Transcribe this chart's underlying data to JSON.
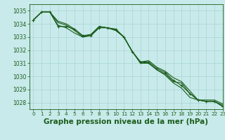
{
  "title": "Graphe pression niveau de la mer (hPa)",
  "bg_color": "#c8eaea",
  "grid_color": "#aad4d4",
  "line_color": "#1a5c1a",
  "xlim": [
    -0.5,
    23
  ],
  "ylim": [
    1027.5,
    1035.5
  ],
  "yticks": [
    1028,
    1029,
    1030,
    1031,
    1032,
    1033,
    1034,
    1035
  ],
  "xticks": [
    0,
    1,
    2,
    3,
    4,
    5,
    6,
    7,
    8,
    9,
    10,
    11,
    12,
    13,
    14,
    15,
    16,
    17,
    18,
    19,
    20,
    21,
    22,
    23
  ],
  "series": [
    [
      1034.3,
      1034.9,
      1034.9,
      1033.8,
      1033.8,
      1033.6,
      1033.1,
      1033.1,
      1033.7,
      1033.7,
      1033.6,
      1033.0,
      1031.9,
      1031.1,
      1031.1,
      1030.6,
      1030.3,
      1029.7,
      1029.3,
      1028.7,
      1028.2,
      1028.1,
      1028.1,
      1027.7
    ],
    [
      1034.3,
      1034.9,
      1034.9,
      1034.1,
      1033.9,
      1033.5,
      1033.0,
      1033.2,
      1033.8,
      1033.7,
      1033.5,
      1033.0,
      1031.9,
      1031.0,
      1031.0,
      1030.5,
      1030.2,
      1029.6,
      1029.5,
      1028.7,
      1028.2,
      1028.1,
      1028.1,
      1027.8
    ],
    [
      1034.3,
      1034.9,
      1034.9,
      1034.2,
      1034.0,
      1033.6,
      1033.1,
      1033.2,
      1033.8,
      1033.7,
      1033.6,
      1033.0,
      1031.9,
      1031.1,
      1031.2,
      1030.7,
      1030.4,
      1029.9,
      1029.6,
      1028.9,
      1028.2,
      1028.2,
      1028.2,
      1027.9
    ],
    [
      1034.3,
      1034.9,
      1034.9,
      1033.9,
      1033.7,
      1033.3,
      1033.0,
      1033.1,
      1033.8,
      1033.7,
      1033.5,
      1033.0,
      1031.9,
      1031.1,
      1031.0,
      1030.5,
      1030.1,
      1029.5,
      1029.1,
      1028.4,
      1028.2,
      1028.1,
      1028.1,
      1027.7
    ]
  ],
  "marker_series": 0,
  "title_color": "#1a5c1a",
  "tick_color": "#1a5c1a",
  "tick_fontsize": 5.5,
  "title_fontsize": 7.5,
  "xlabel_fontsize": 5.2
}
